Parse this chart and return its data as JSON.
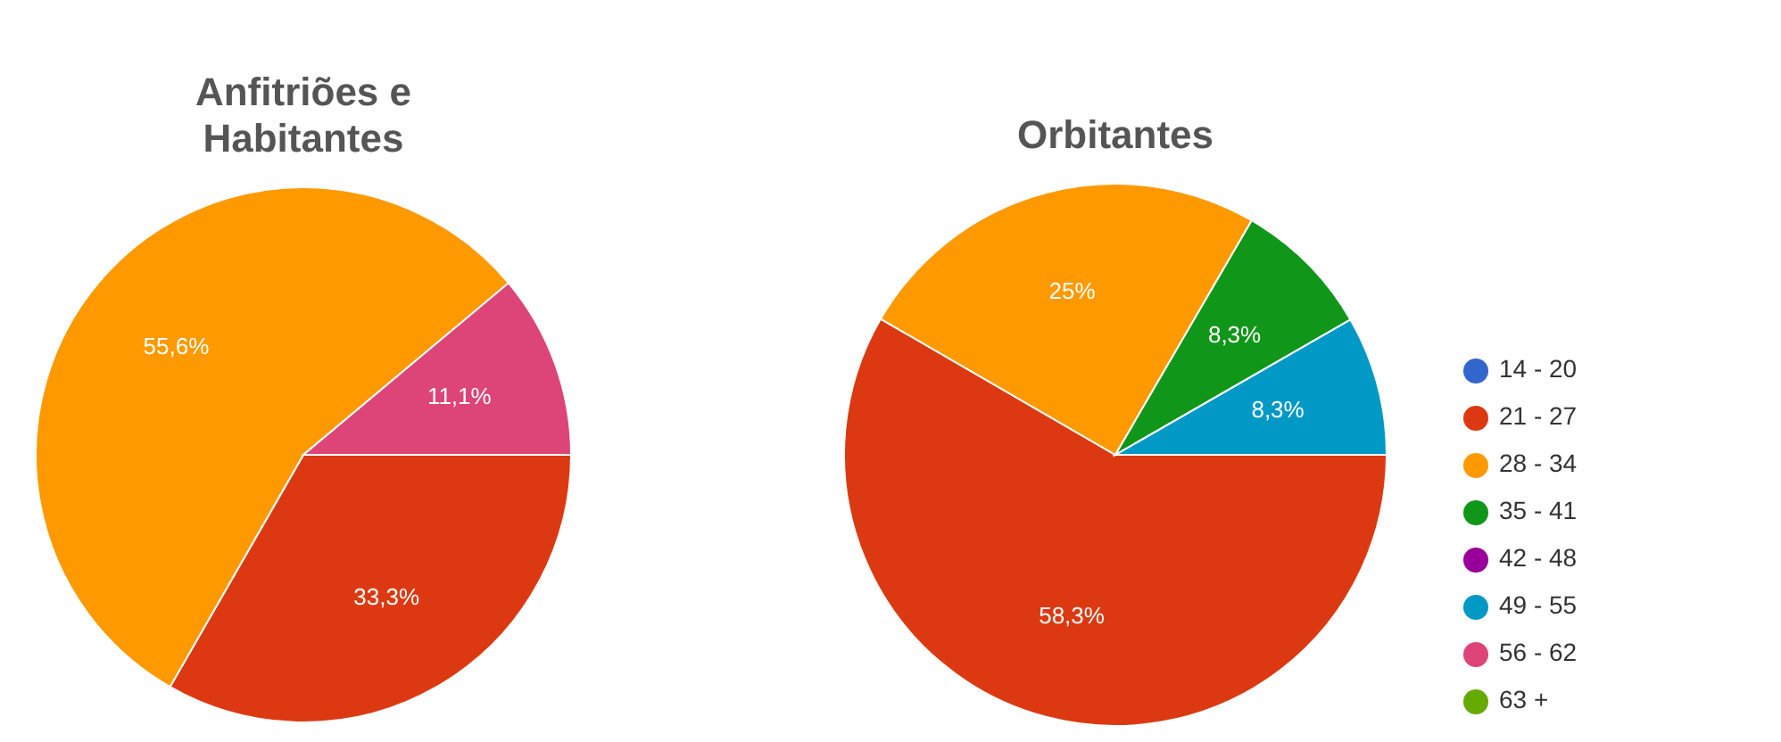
{
  "chart_data": [
    {
      "type": "pie",
      "title": "Anfitriões e Habitantes",
      "categories": [
        null,
        null,
        null,
        null,
        null,
        null,
        null,
        null
      ],
      "values": [
        0,
        33.3,
        55.6,
        0,
        0,
        0,
        11.1,
        0
      ],
      "value_labels": [
        null,
        "33,3%",
        "55,6%",
        null,
        null,
        null,
        "11,1%",
        null
      ],
      "colors": [
        "#3366cc",
        "#dc3912",
        "#ff9900",
        "#109618",
        "#990099",
        "#0099c6",
        "#dd4477",
        "#66aa00"
      ],
      "legend": false
    },
    {
      "type": "pie",
      "title": "Orbitantes",
      "categories": [
        "14 - 20",
        "21 - 27",
        "28 - 34",
        "35 - 41",
        "42 - 48",
        "49 - 55",
        "56 - 62",
        "63 +"
      ],
      "values": [
        0,
        58.3,
        25,
        8.3,
        0,
        8.3,
        0,
        0
      ],
      "value_labels": [
        null,
        "58,3%",
        "25%",
        "8,3%",
        null,
        "8,3%",
        null,
        null
      ],
      "colors": [
        "#3366cc",
        "#dc3912",
        "#ff9900",
        "#109618",
        "#990099",
        "#0099c6",
        "#dd4477",
        "#66aa00"
      ],
      "legend": "right"
    }
  ]
}
